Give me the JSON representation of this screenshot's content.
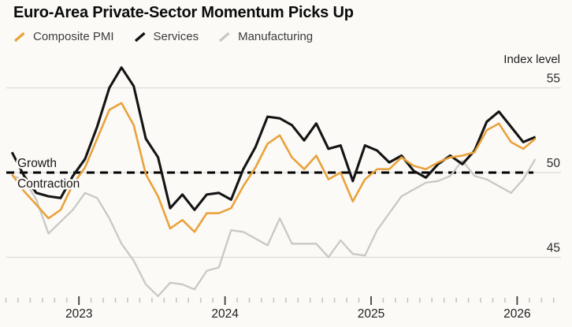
{
  "chart": {
    "title": "Euro-Area Private-Sector Momentum Picks Up",
    "axis": {
      "y_label": "Index level",
      "y_ticks": [
        55,
        50,
        45
      ],
      "x_year_labels": [
        "2023",
        "2024",
        "2025",
        "2026"
      ]
    },
    "ref_line": {
      "value": 50,
      "above_label": "Growth",
      "below_label": "Contraction"
    }
  },
  "chart_data": {
    "type": "line",
    "title": "Euro-Area Private-Sector Momentum Picks Up",
    "ylabel": "Index level",
    "ylim": [
      42.5,
      56.5
    ],
    "yticks": [
      45,
      50,
      55
    ],
    "xticks_years": [
      "2023",
      "2024",
      "2025",
      "2026"
    ],
    "grid": "horizontal",
    "legend_position": "top-left",
    "reference_line": {
      "value": 50,
      "above": "Growth",
      "below": "Contraction"
    },
    "x": [
      "Jul 2022",
      "Aug 2022",
      "Sep 2022",
      "Oct 2022",
      "Nov 2022",
      "Dec 2022",
      "Jan 2023",
      "Feb 2023",
      "Mar 2023",
      "Apr 2023",
      "May 2023",
      "Jun 2023",
      "Jul 2023",
      "Aug 2023",
      "Sep 2023",
      "Oct 2023",
      "Nov 2023",
      "Dec 2023",
      "Jan 2024",
      "Feb 2024",
      "Mar 2024",
      "Apr 2024",
      "May 2024",
      "Jun 2024",
      "Jul 2024",
      "Aug 2024",
      "Sep 2024",
      "Oct 2024",
      "Nov 2024",
      "Dec 2024",
      "Jan 2025",
      "Feb 2025",
      "Mar 2025",
      "Apr 2025",
      "May 2025",
      "Jun 2025",
      "Jul 2025",
      "Aug 2025",
      "Sep 2025",
      "Oct 2025",
      "Nov 2025",
      "Dec 2025",
      "Jan 2026",
      "Feb 2026"
    ],
    "series": [
      {
        "name": "Composite PMI",
        "color": "#e9a23c",
        "values": [
          49.9,
          48.9,
          48.1,
          47.3,
          47.8,
          49.3,
          50.3,
          52.0,
          53.7,
          54.1,
          52.8,
          49.9,
          48.6,
          46.7,
          47.2,
          46.5,
          47.6,
          47.6,
          47.9,
          49.2,
          50.3,
          51.7,
          52.2,
          50.9,
          50.2,
          51.0,
          49.6,
          50.0,
          48.3,
          49.6,
          50.2,
          50.2,
          50.9,
          50.4,
          50.2,
          50.6,
          50.9,
          51.0,
          51.2,
          52.5,
          52.9,
          51.8,
          51.4,
          52.0
        ]
      },
      {
        "name": "Services",
        "color": "#141414",
        "values": [
          51.2,
          49.8,
          48.8,
          48.6,
          48.5,
          49.8,
          50.8,
          52.7,
          55.0,
          56.2,
          55.1,
          52.0,
          50.9,
          47.9,
          48.7,
          47.8,
          48.7,
          48.8,
          48.4,
          50.2,
          51.5,
          53.3,
          53.2,
          52.8,
          51.9,
          52.9,
          51.4,
          51.6,
          49.5,
          51.6,
          51.3,
          50.6,
          51.0,
          50.1,
          49.7,
          50.5,
          51.0,
          50.5,
          51.3,
          53.0,
          53.6,
          52.7,
          51.8,
          52.1
        ]
      },
      {
        "name": "Manufacturing",
        "color": "#c9c8c5",
        "values": [
          49.8,
          49.6,
          48.4,
          46.4,
          47.1,
          47.8,
          48.8,
          48.5,
          47.3,
          45.8,
          44.8,
          43.4,
          42.7,
          43.5,
          43.4,
          43.1,
          44.2,
          44.4,
          46.6,
          46.5,
          46.1,
          45.7,
          47.3,
          45.8,
          45.8,
          45.8,
          45.0,
          46.0,
          45.2,
          45.1,
          46.6,
          47.6,
          48.6,
          49.0,
          49.4,
          49.5,
          49.8,
          50.7,
          49.8,
          49.6,
          49.2,
          48.8,
          49.6,
          50.8
        ]
      }
    ]
  }
}
